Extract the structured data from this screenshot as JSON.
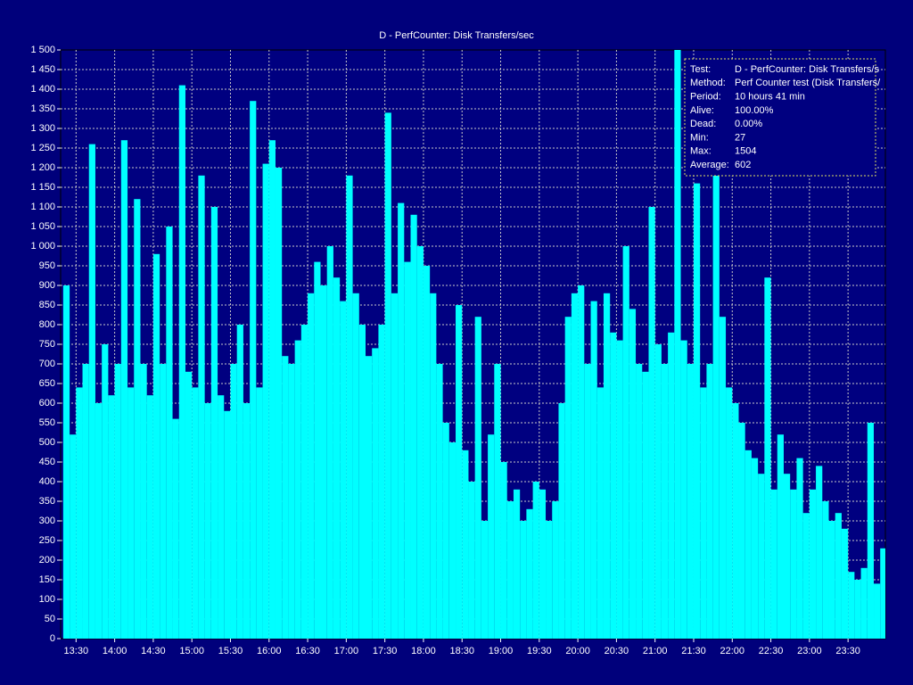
{
  "chart_data": {
    "type": "bar",
    "title": "D - PerfCounter: Disk Transfers/sec",
    "x": [
      "13:20",
      "13:25",
      "13:30",
      "13:35",
      "13:40",
      "13:45",
      "13:50",
      "13:55",
      "14:00",
      "14:05",
      "14:10",
      "14:15",
      "14:20",
      "14:25",
      "14:30",
      "14:35",
      "14:40",
      "14:45",
      "14:50",
      "14:55",
      "15:00",
      "15:05",
      "15:10",
      "15:15",
      "15:20",
      "15:25",
      "15:30",
      "15:35",
      "15:40",
      "15:45",
      "15:50",
      "15:55",
      "16:00",
      "16:05",
      "16:10",
      "16:15",
      "16:20",
      "16:25",
      "16:30",
      "16:35",
      "16:40",
      "16:45",
      "16:50",
      "16:55",
      "17:00",
      "17:05",
      "17:10",
      "17:15",
      "17:20",
      "17:25",
      "17:30",
      "17:35",
      "17:40",
      "17:45",
      "17:50",
      "17:55",
      "18:00",
      "18:05",
      "18:10",
      "18:15",
      "18:20",
      "18:25",
      "18:30",
      "18:35",
      "18:40",
      "18:45",
      "18:50",
      "18:55",
      "19:00",
      "19:05",
      "19:10",
      "19:15",
      "19:20",
      "19:25",
      "19:30",
      "19:35",
      "19:40",
      "19:45",
      "19:50",
      "19:55",
      "20:00",
      "20:05",
      "20:10",
      "20:15",
      "20:20",
      "20:25",
      "20:30",
      "20:35",
      "20:40",
      "20:45",
      "20:50",
      "20:55",
      "21:00",
      "21:05",
      "21:10",
      "21:15",
      "21:20",
      "21:25",
      "21:30",
      "21:35",
      "21:40",
      "21:45",
      "21:50",
      "21:55",
      "22:00",
      "22:05",
      "22:10",
      "22:15",
      "22:20",
      "22:25",
      "22:30",
      "22:35",
      "22:40",
      "22:45",
      "22:50",
      "22:55",
      "23:00",
      "23:05",
      "23:10",
      "23:15",
      "23:20",
      "23:25",
      "23:30",
      "23:35",
      "23:40",
      "23:45",
      "23:50",
      "23:55"
    ],
    "values": [
      900,
      520,
      640,
      700,
      1260,
      600,
      750,
      620,
      700,
      1270,
      640,
      1120,
      700,
      620,
      980,
      700,
      1050,
      560,
      1410,
      680,
      640,
      1180,
      600,
      1100,
      620,
      580,
      700,
      800,
      600,
      1370,
      640,
      1210,
      1270,
      1200,
      720,
      700,
      760,
      800,
      880,
      960,
      900,
      1000,
      920,
      860,
      1180,
      880,
      800,
      720,
      740,
      800,
      1340,
      880,
      1110,
      960,
      1080,
      1000,
      950,
      880,
      700,
      550,
      500,
      850,
      480,
      400,
      820,
      300,
      520,
      700,
      450,
      350,
      380,
      300,
      330,
      400,
      380,
      300,
      350,
      600,
      820,
      880,
      900,
      700,
      860,
      640,
      880,
      780,
      760,
      1000,
      840,
      700,
      680,
      1100,
      750,
      700,
      780,
      1500,
      760,
      700,
      1160,
      640,
      700,
      1180,
      820,
      640,
      600,
      550,
      480,
      460,
      420,
      920,
      380,
      520,
      420,
      380,
      460,
      320,
      380,
      440,
      350,
      300,
      320,
      280,
      170,
      150,
      180,
      550,
      140,
      230
    ],
    "color": "#00ffff",
    "xlim": [
      "13:18",
      "23:59"
    ],
    "xticks": [
      "13:30",
      "14:00",
      "14:30",
      "15:00",
      "15:30",
      "16:00",
      "16:30",
      "17:00",
      "17:30",
      "18:00",
      "18:30",
      "19:00",
      "19:30",
      "20:00",
      "20:30",
      "21:00",
      "21:30",
      "22:00",
      "22:30",
      "23:00",
      "23:30"
    ],
    "ylim": [
      0,
      1500
    ],
    "yticks": [
      0,
      50,
      100,
      150,
      200,
      250,
      300,
      350,
      400,
      450,
      500,
      550,
      600,
      650,
      700,
      750,
      800,
      850,
      900,
      950,
      {
        "value": 1000,
        "label": "1 000"
      },
      {
        "value": 1050,
        "label": "1 050"
      },
      {
        "value": 1100,
        "label": "1 100"
      },
      {
        "value": 1150,
        "label": "1 150"
      },
      {
        "value": 1200,
        "label": "1 200"
      },
      {
        "value": 1250,
        "label": "1 250"
      },
      {
        "value": 1300,
        "label": "1 300"
      },
      {
        "value": 1350,
        "label": "1 350"
      },
      {
        "value": 1400,
        "label": "1 400"
      },
      {
        "value": 1450,
        "label": "1 450"
      },
      {
        "value": 1500,
        "label": "1 500"
      }
    ],
    "grid": true,
    "info": [
      {
        "label": "Test:",
        "value": "D - PerfCounter: Disk Transfers/s"
      },
      {
        "label": "Method:",
        "value": "Perf Counter test (Disk Transfers/"
      },
      {
        "label": "Period:",
        "value": "10 hours 41 min"
      },
      {
        "label": "Alive:",
        "value": "100.00%"
      },
      {
        "label": "Dead:",
        "value": "0.00%"
      },
      {
        "label": "Min:",
        "value": "27"
      },
      {
        "label": "Max:",
        "value": "1504"
      },
      {
        "label": "Average:",
        "value": "602"
      }
    ]
  }
}
